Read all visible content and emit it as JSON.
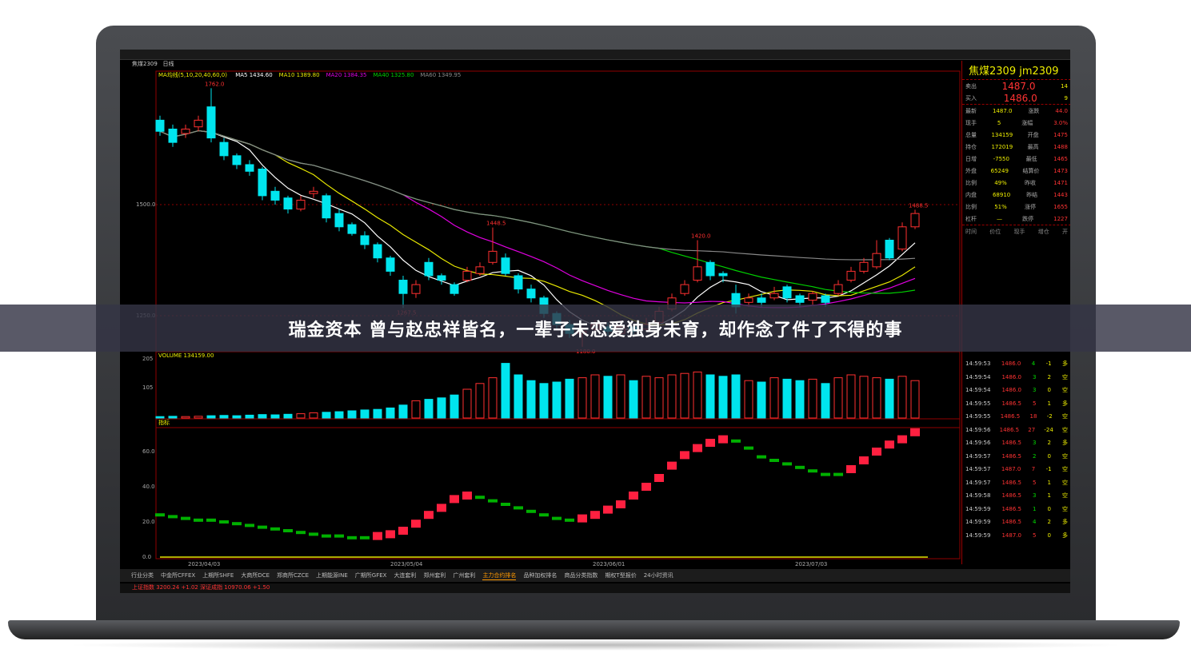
{
  "headline": "瑞金资本 曾与赵忠祥皆名，一辈子未恋爱独身未育，却作念了件了不得的事",
  "chart_header": {
    "symbol": "焦煤2309",
    "period": "日线",
    "ma_legend": [
      {
        "label": "MA5 1434.60",
        "color": "#ffffff"
      },
      {
        "label": "MA10 1389.80",
        "color": "#e8e800"
      },
      {
        "label": "MA20 1384.35",
        "color": "#e000e0"
      },
      {
        "label": "MA40 1325.80",
        "color": "#00d000"
      },
      {
        "label": "MA60 1349.95",
        "color": "#888888"
      }
    ],
    "ma_prefix": "MA均线(5,10,20,40,60,0)"
  },
  "quote": {
    "title": "焦煤2309  jm2309",
    "sell_label": "卖出",
    "sell_price": "1487.0",
    "sell_vol": "14",
    "buy_label": "买入",
    "buy_price": "1486.0",
    "buy_vol": "9",
    "rows": [
      [
        "最新",
        "1487.0",
        "涨跌",
        "44.0"
      ],
      [
        "现手",
        "5",
        "涨幅",
        "3.0%"
      ],
      [
        "总量",
        "134159",
        "开盘",
        "1475"
      ],
      [
        "持仓",
        "172019",
        "最高",
        "1488"
      ],
      [
        "日增",
        "-7550",
        "最低",
        "1465"
      ],
      [
        "外盘",
        "65249",
        "结算价",
        "1473"
      ],
      [
        "比例",
        "49%",
        "昨收",
        "1471"
      ],
      [
        "内盘",
        "68910",
        "昨结",
        "1443"
      ],
      [
        "比例",
        "51%",
        "涨停",
        "1655"
      ],
      [
        "杠杆",
        "—",
        "跌停",
        "1227"
      ]
    ],
    "tick_header": [
      "时间",
      "价位",
      "现手",
      "增仓",
      "开"
    ]
  },
  "ticks": [
    [
      "14:59:53",
      "1486.0",
      "4",
      "-1",
      "多"
    ],
    [
      "14:59:54",
      "1486.0",
      "3",
      "2",
      "空"
    ],
    [
      "14:59:54",
      "1486.0",
      "3",
      "0",
      "空"
    ],
    [
      "14:59:55",
      "1486.5",
      "5",
      "1",
      "多"
    ],
    [
      "14:59:55",
      "1486.5",
      "18",
      "-2",
      "空"
    ],
    [
      "14:59:56",
      "1486.5",
      "27",
      "-24",
      "空"
    ],
    [
      "14:59:56",
      "1486.5",
      "3",
      "2",
      "多"
    ],
    [
      "14:59:57",
      "1486.5",
      "2",
      "0",
      "空"
    ],
    [
      "14:59:57",
      "1487.0",
      "7",
      "-1",
      "空"
    ],
    [
      "14:59:57",
      "1486.5",
      "5",
      "1",
      "空"
    ],
    [
      "14:59:58",
      "1486.5",
      "3",
      "1",
      "空"
    ],
    [
      "14:59:59",
      "1486.5",
      "1",
      "0",
      "空"
    ],
    [
      "14:59:59",
      "1486.5",
      "4",
      "2",
      "多"
    ],
    [
      "14:59:59",
      "1487.0",
      "5",
      "0",
      "多"
    ]
  ],
  "chart_data": {
    "type": "candlestick",
    "price_axis": {
      "ticks": [
        "1500.0",
        "1250.0"
      ]
    },
    "annotations": [
      "1762.0",
      "1448.5",
      "1267.5",
      "1420.0",
      "1180.0",
      "1488.5"
    ],
    "x_ticks": [
      "2023/04/03",
      "2023/05/04",
      "2023/06/01",
      "2023/07/03"
    ],
    "ohlc": [
      [
        1690,
        1665,
        1700,
        1655
      ],
      [
        1670,
        1640,
        1680,
        1630
      ],
      [
        1660,
        1670,
        1680,
        1650
      ],
      [
        1675,
        1690,
        1700,
        1665
      ],
      [
        1720,
        1650,
        1762,
        1640
      ],
      [
        1640,
        1610,
        1650,
        1600
      ],
      [
        1610,
        1590,
        1615,
        1580
      ],
      [
        1590,
        1575,
        1600,
        1565
      ],
      [
        1580,
        1520,
        1585,
        1510
      ],
      [
        1530,
        1510,
        1540,
        1500
      ],
      [
        1515,
        1490,
        1520,
        1480
      ],
      [
        1490,
        1510,
        1520,
        1485
      ],
      [
        1525,
        1530,
        1540,
        1515
      ],
      [
        1520,
        1470,
        1525,
        1460
      ],
      [
        1480,
        1450,
        1490,
        1440
      ],
      [
        1455,
        1435,
        1460,
        1430
      ],
      [
        1430,
        1410,
        1440,
        1400
      ],
      [
        1410,
        1380,
        1415,
        1370
      ],
      [
        1380,
        1350,
        1385,
        1340
      ],
      [
        1330,
        1300,
        1340,
        1267.5
      ],
      [
        1300,
        1320,
        1330,
        1290
      ],
      [
        1370,
        1340,
        1380,
        1330
      ],
      [
        1340,
        1330,
        1345,
        1320
      ],
      [
        1320,
        1300,
        1325,
        1295
      ],
      [
        1330,
        1350,
        1360,
        1325
      ],
      [
        1345,
        1360,
        1370,
        1340
      ],
      [
        1370,
        1395,
        1448.5,
        1365
      ],
      [
        1380,
        1345,
        1390,
        1340
      ],
      [
        1340,
        1310,
        1345,
        1300
      ],
      [
        1310,
        1290,
        1320,
        1280
      ],
      [
        1290,
        1255,
        1295,
        1245
      ],
      [
        1255,
        1230,
        1260,
        1220
      ],
      [
        1230,
        1210,
        1240,
        1200
      ],
      [
        1210,
        1215,
        1225,
        1180
      ],
      [
        1220,
        1230,
        1240,
        1210
      ],
      [
        1225,
        1215,
        1235,
        1205
      ],
      [
        1210,
        1225,
        1240,
        1205
      ],
      [
        1225,
        1215,
        1230,
        1208
      ],
      [
        1220,
        1230,
        1245,
        1215
      ],
      [
        1235,
        1260,
        1270,
        1230
      ],
      [
        1265,
        1290,
        1300,
        1260
      ],
      [
        1300,
        1320,
        1330,
        1295
      ],
      [
        1330,
        1360,
        1420,
        1325
      ],
      [
        1370,
        1340,
        1375,
        1330
      ],
      [
        1345,
        1340,
        1350,
        1325
      ],
      [
        1300,
        1270,
        1320,
        1255
      ],
      [
        1280,
        1290,
        1300,
        1270
      ],
      [
        1290,
        1280,
        1300,
        1270
      ],
      [
        1290,
        1300,
        1315,
        1285
      ],
      [
        1315,
        1290,
        1320,
        1280
      ],
      [
        1295,
        1280,
        1300,
        1270
      ],
      [
        1285,
        1300,
        1305,
        1275
      ],
      [
        1295,
        1280,
        1300,
        1270
      ],
      [
        1300,
        1320,
        1330,
        1295
      ],
      [
        1330,
        1350,
        1360,
        1325
      ],
      [
        1350,
        1370,
        1380,
        1345
      ],
      [
        1360,
        1390,
        1420,
        1355
      ],
      [
        1420,
        1380,
        1425,
        1375
      ],
      [
        1400,
        1450,
        1460,
        1395
      ],
      [
        1450,
        1480,
        1488.5,
        1445
      ]
    ],
    "volume": {
      "label": "VOLUME 134159.00",
      "ticks": [
        "205",
        "105"
      ],
      "values": [
        5,
        6,
        5,
        6,
        8,
        9,
        8,
        10,
        12,
        11,
        13,
        15,
        18,
        20,
        22,
        25,
        28,
        30,
        35,
        45,
        60,
        65,
        70,
        80,
        100,
        120,
        140,
        190,
        150,
        130,
        120,
        125,
        135,
        140,
        150,
        145,
        150,
        130,
        145,
        140,
        150,
        155,
        160,
        150,
        145,
        150,
        130,
        125,
        140,
        135,
        130,
        135,
        120,
        140,
        150,
        145,
        140,
        135,
        145,
        130
      ]
    },
    "indicator": {
      "label": "指标",
      "ticks": [
        "60.0",
        "40.0",
        "20.0",
        "0.0"
      ],
      "values": [
        24,
        23,
        22,
        21,
        21,
        20,
        19,
        18,
        17,
        16,
        15,
        14,
        13,
        12,
        12,
        11,
        11,
        12,
        13,
        15,
        19,
        24,
        28,
        33,
        35,
        34,
        32,
        30,
        28,
        26,
        24,
        22,
        21,
        22,
        24,
        27,
        30,
        35,
        40,
        45,
        52,
        58,
        62,
        65,
        67,
        66,
        62,
        57,
        55,
        53,
        51,
        49,
        47,
        47,
        50,
        55,
        60,
        64,
        67,
        71
      ]
    }
  },
  "tabs": [
    "行业分类",
    "中金所CFFEX",
    "上期所SHFE",
    "大商所DCE",
    "郑商所CZCE",
    "上期能源INE",
    "广期所GFEX",
    "大连套利",
    "郑州套利",
    "广州套利",
    "主力合约排名",
    "品种加权排名",
    "商品分类指数",
    "期权T型报价",
    "24小时资讯"
  ],
  "active_tab": 10,
  "status_text": "上证指数 3200.24 +1.02   深证成指 10970.06 +1.50",
  "colors": {
    "up": "#ff3030",
    "down": "#00e5ee",
    "grid": "#900000"
  }
}
